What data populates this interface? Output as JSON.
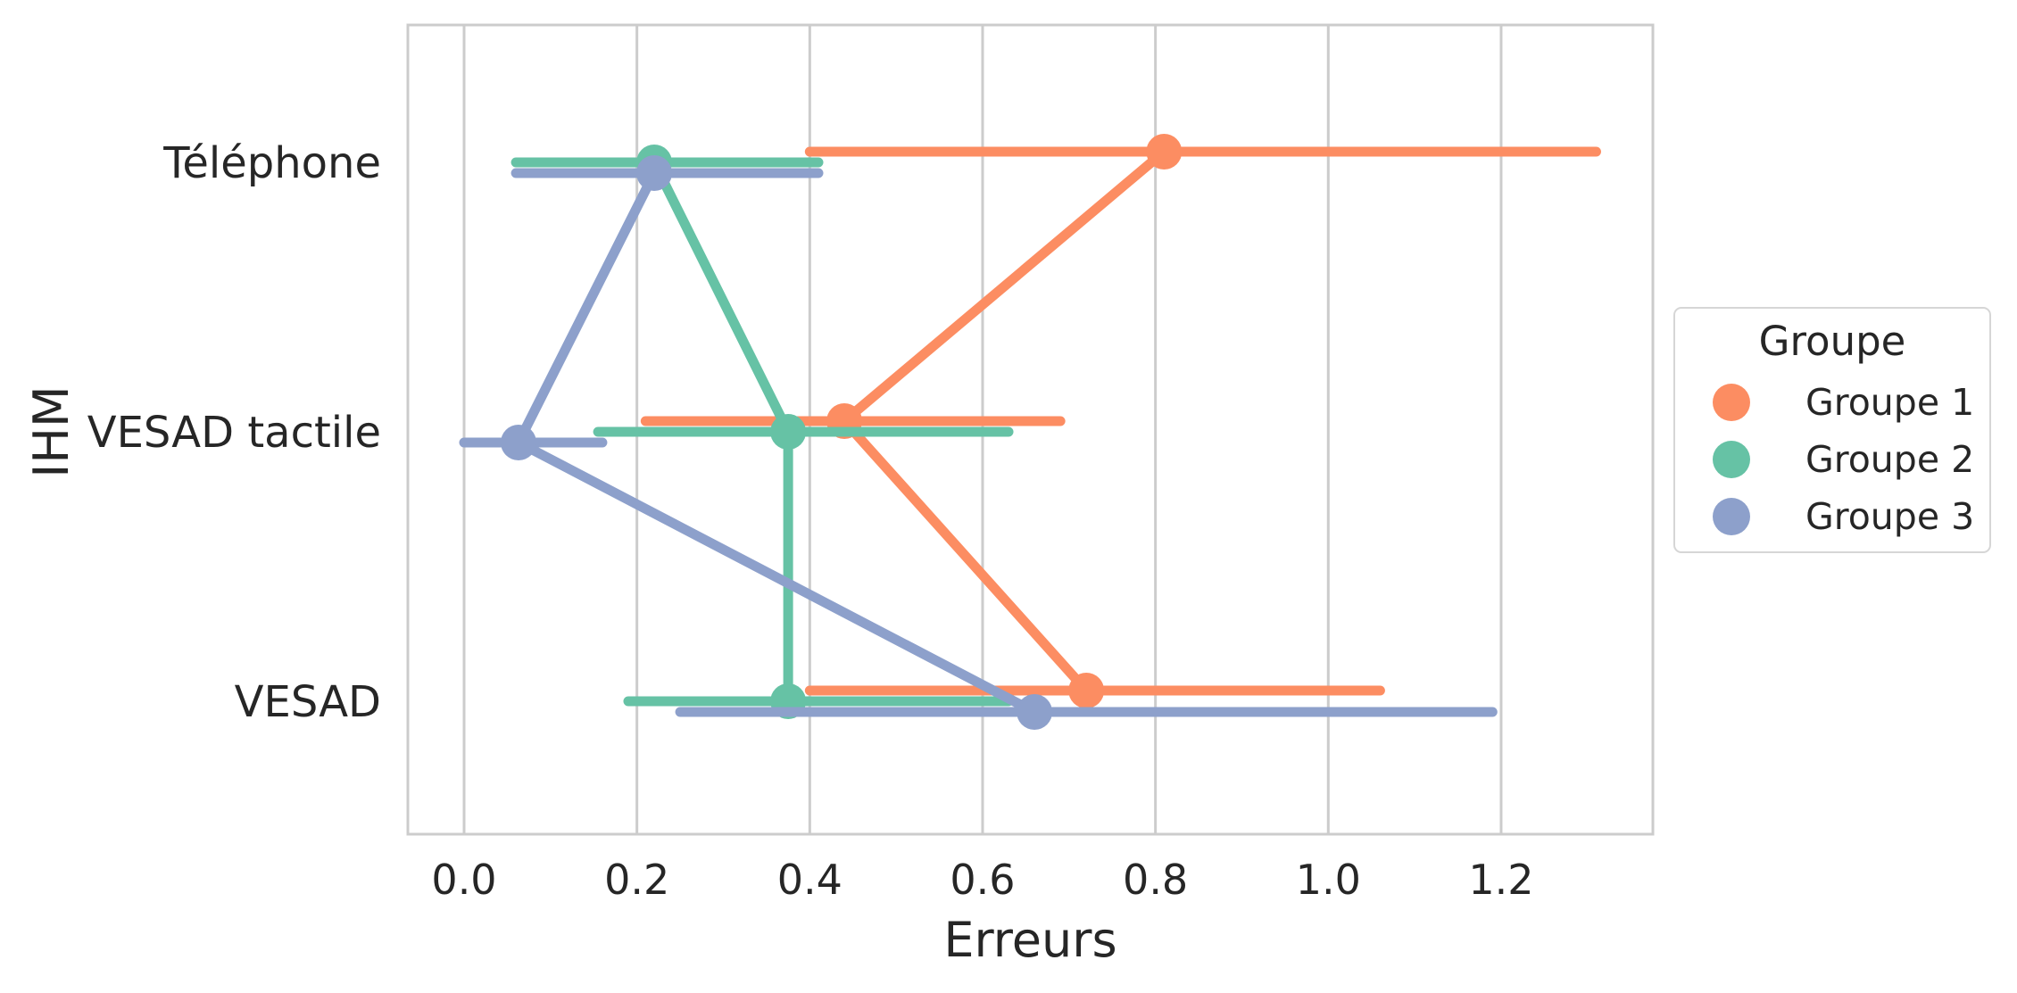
{
  "chart_data": {
    "type": "point",
    "title": "",
    "xlabel": "Erreurs",
    "ylabel": "IHM",
    "xlim": [
      -0.065,
      1.38
    ],
    "xticks": [
      0.0,
      0.2,
      0.4,
      0.6,
      0.8,
      1.0,
      1.2
    ],
    "xtick_labels": [
      "0.0",
      "0.2",
      "0.4",
      "0.6",
      "0.8",
      "1.0",
      "1.2"
    ],
    "categories": [
      "Téléphone",
      "VESAD tactile",
      "VESAD"
    ],
    "grid": "vertical",
    "legend": {
      "title": "Groupe",
      "placement": "right"
    },
    "series": [
      {
        "name": "Groupe 1",
        "color": "#fc8d62",
        "values": [
          0.81,
          0.44,
          0.72
        ],
        "ci_low": [
          0.4,
          0.21,
          0.4
        ],
        "ci_high": [
          1.31,
          0.69,
          1.06
        ]
      },
      {
        "name": "Groupe 2",
        "color": "#66c2a5",
        "values": [
          0.22,
          0.375,
          0.375
        ],
        "ci_low": [
          0.06,
          0.155,
          0.19
        ],
        "ci_high": [
          0.41,
          0.63,
          0.63
        ]
      },
      {
        "name": "Groupe 3",
        "color": "#8da0cb",
        "values": [
          0.22,
          0.063,
          0.66
        ],
        "ci_low": [
          0.06,
          0.0,
          0.25
        ],
        "ci_high": [
          0.41,
          0.16,
          1.19
        ]
      }
    ]
  }
}
